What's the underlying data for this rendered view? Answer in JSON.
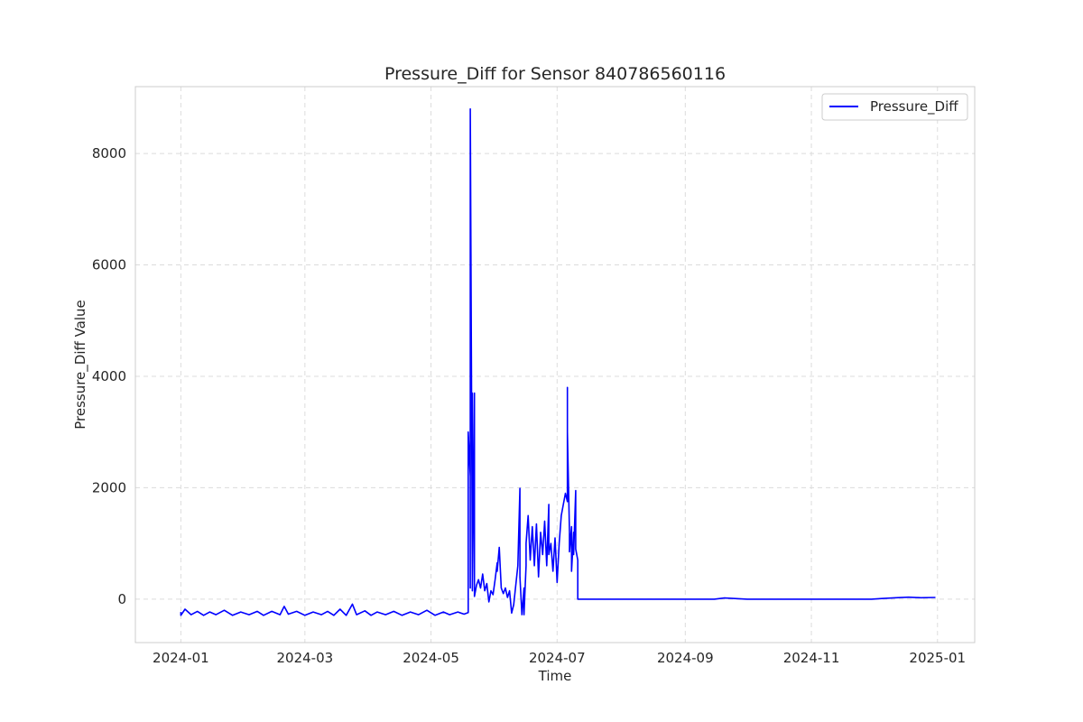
{
  "chart_data": {
    "type": "line",
    "title": "Pressure_Diff for Sensor 840786560116",
    "xlabel": "Time",
    "ylabel": "Pressure_Diff Value",
    "x_range": [
      "2023-12-10",
      "2025-01-19"
    ],
    "ylim": [
      -780,
      9200
    ],
    "x_ticks": [
      "2024-01",
      "2024-03",
      "2024-05",
      "2024-07",
      "2024-09",
      "2024-11",
      "2025-01"
    ],
    "y_ticks": [
      0,
      2000,
      4000,
      6000,
      8000
    ],
    "grid": true,
    "legend_position": "top-right",
    "colors": {
      "line": "#0000ff",
      "grid": "#dcdcdc",
      "frame": "#cccccc",
      "text": "#262626"
    },
    "series": [
      {
        "name": "Pressure_Diff",
        "points": [
          [
            "2024-01-01",
            -230
          ],
          [
            "2024-01-01",
            -290
          ],
          [
            "2024-01-03",
            -180
          ],
          [
            "2024-01-06",
            -280
          ],
          [
            "2024-01-09",
            -220
          ],
          [
            "2024-01-12",
            -290
          ],
          [
            "2024-01-15",
            -230
          ],
          [
            "2024-01-18",
            -280
          ],
          [
            "2024-01-22",
            -200
          ],
          [
            "2024-01-26",
            -290
          ],
          [
            "2024-01-30",
            -230
          ],
          [
            "2024-02-03",
            -280
          ],
          [
            "2024-02-07",
            -220
          ],
          [
            "2024-02-10",
            -290
          ],
          [
            "2024-02-14",
            -220
          ],
          [
            "2024-02-18",
            -280
          ],
          [
            "2024-02-20",
            -130
          ],
          [
            "2024-02-22",
            -270
          ],
          [
            "2024-02-26",
            -220
          ],
          [
            "2024-03-01",
            -290
          ],
          [
            "2024-03-05",
            -230
          ],
          [
            "2024-03-09",
            -280
          ],
          [
            "2024-03-12",
            -220
          ],
          [
            "2024-03-15",
            -290
          ],
          [
            "2024-03-18",
            -180
          ],
          [
            "2024-03-21",
            -290
          ],
          [
            "2024-03-24",
            -90
          ],
          [
            "2024-03-26",
            -280
          ],
          [
            "2024-03-30",
            -210
          ],
          [
            "2024-04-02",
            -290
          ],
          [
            "2024-04-05",
            -230
          ],
          [
            "2024-04-09",
            -280
          ],
          [
            "2024-04-13",
            -220
          ],
          [
            "2024-04-17",
            -290
          ],
          [
            "2024-04-21",
            -230
          ],
          [
            "2024-04-25",
            -280
          ],
          [
            "2024-04-29",
            -200
          ],
          [
            "2024-05-03",
            -290
          ],
          [
            "2024-05-07",
            -230
          ],
          [
            "2024-05-10",
            -280
          ],
          [
            "2024-05-14",
            -230
          ],
          [
            "2024-05-17",
            -270
          ],
          [
            "2024-05-19",
            -240
          ],
          [
            "2024-05-19",
            3000
          ],
          [
            "2024-05-20",
            2200
          ],
          [
            "2024-05-20",
            200
          ],
          [
            "2024-05-20",
            8800
          ],
          [
            "2024-05-21",
            400
          ],
          [
            "2024-05-21",
            3700
          ],
          [
            "2024-05-21",
            150
          ],
          [
            "2024-05-22",
            3700
          ],
          [
            "2024-05-22",
            300
          ],
          [
            "2024-05-22",
            50
          ],
          [
            "2024-05-23",
            250
          ],
          [
            "2024-05-24",
            350
          ],
          [
            "2024-05-25",
            200
          ],
          [
            "2024-05-26",
            450
          ],
          [
            "2024-05-27",
            150
          ],
          [
            "2024-05-28",
            280
          ],
          [
            "2024-05-29",
            -50
          ],
          [
            "2024-05-30",
            150
          ],
          [
            "2024-05-31",
            80
          ],
          [
            "2024-06-01",
            350
          ],
          [
            "2024-06-02",
            650
          ],
          [
            "2024-06-02",
            500
          ],
          [
            "2024-06-03",
            930
          ],
          [
            "2024-06-04",
            200
          ],
          [
            "2024-06-05",
            100
          ],
          [
            "2024-06-06",
            200
          ],
          [
            "2024-06-07",
            30
          ],
          [
            "2024-06-08",
            150
          ],
          [
            "2024-06-09",
            -250
          ],
          [
            "2024-06-10",
            -100
          ],
          [
            "2024-06-11",
            250
          ],
          [
            "2024-06-12",
            600
          ],
          [
            "2024-06-13",
            1990
          ],
          [
            "2024-06-13",
            400
          ],
          [
            "2024-06-14",
            -280
          ],
          [
            "2024-06-15",
            200
          ],
          [
            "2024-06-15",
            -280
          ],
          [
            "2024-06-16",
            600
          ],
          [
            "2024-06-16",
            1000
          ],
          [
            "2024-06-17",
            1500
          ],
          [
            "2024-06-18",
            700
          ],
          [
            "2024-06-19",
            1300
          ],
          [
            "2024-06-20",
            600
          ],
          [
            "2024-06-21",
            1350
          ],
          [
            "2024-06-22",
            400
          ],
          [
            "2024-06-23",
            1200
          ],
          [
            "2024-06-24",
            800
          ],
          [
            "2024-06-25",
            1400
          ],
          [
            "2024-06-26",
            600
          ],
          [
            "2024-06-27",
            1700
          ],
          [
            "2024-06-27",
            800
          ],
          [
            "2024-06-28",
            1000
          ],
          [
            "2024-06-29",
            500
          ],
          [
            "2024-06-30",
            1100
          ],
          [
            "2024-07-01",
            300
          ],
          [
            "2024-07-02",
            1000
          ],
          [
            "2024-07-03",
            1500
          ],
          [
            "2024-07-04",
            1700
          ],
          [
            "2024-07-05",
            1900
          ],
          [
            "2024-07-06",
            1750
          ],
          [
            "2024-07-06",
            2750
          ],
          [
            "2024-07-06",
            3800
          ],
          [
            "2024-07-06",
            3000
          ],
          [
            "2024-07-07",
            1200
          ],
          [
            "2024-07-07",
            850
          ],
          [
            "2024-07-08",
            1300
          ],
          [
            "2024-07-08",
            500
          ],
          [
            "2024-07-09",
            1200
          ],
          [
            "2024-07-09",
            800
          ],
          [
            "2024-07-10",
            1950
          ],
          [
            "2024-07-10",
            900
          ],
          [
            "2024-07-11",
            700
          ],
          [
            "2024-07-11",
            0
          ],
          [
            "2024-08-01",
            0
          ],
          [
            "2024-09-01",
            0
          ],
          [
            "2024-09-15",
            0
          ],
          [
            "2024-09-20",
            20
          ],
          [
            "2024-09-25",
            10
          ],
          [
            "2024-10-01",
            0
          ],
          [
            "2024-11-01",
            0
          ],
          [
            "2024-11-30",
            0
          ],
          [
            "2024-12-05",
            10
          ],
          [
            "2024-12-12",
            25
          ],
          [
            "2024-12-18",
            35
          ],
          [
            "2024-12-24",
            25
          ],
          [
            "2024-12-31",
            30
          ]
        ]
      }
    ]
  }
}
